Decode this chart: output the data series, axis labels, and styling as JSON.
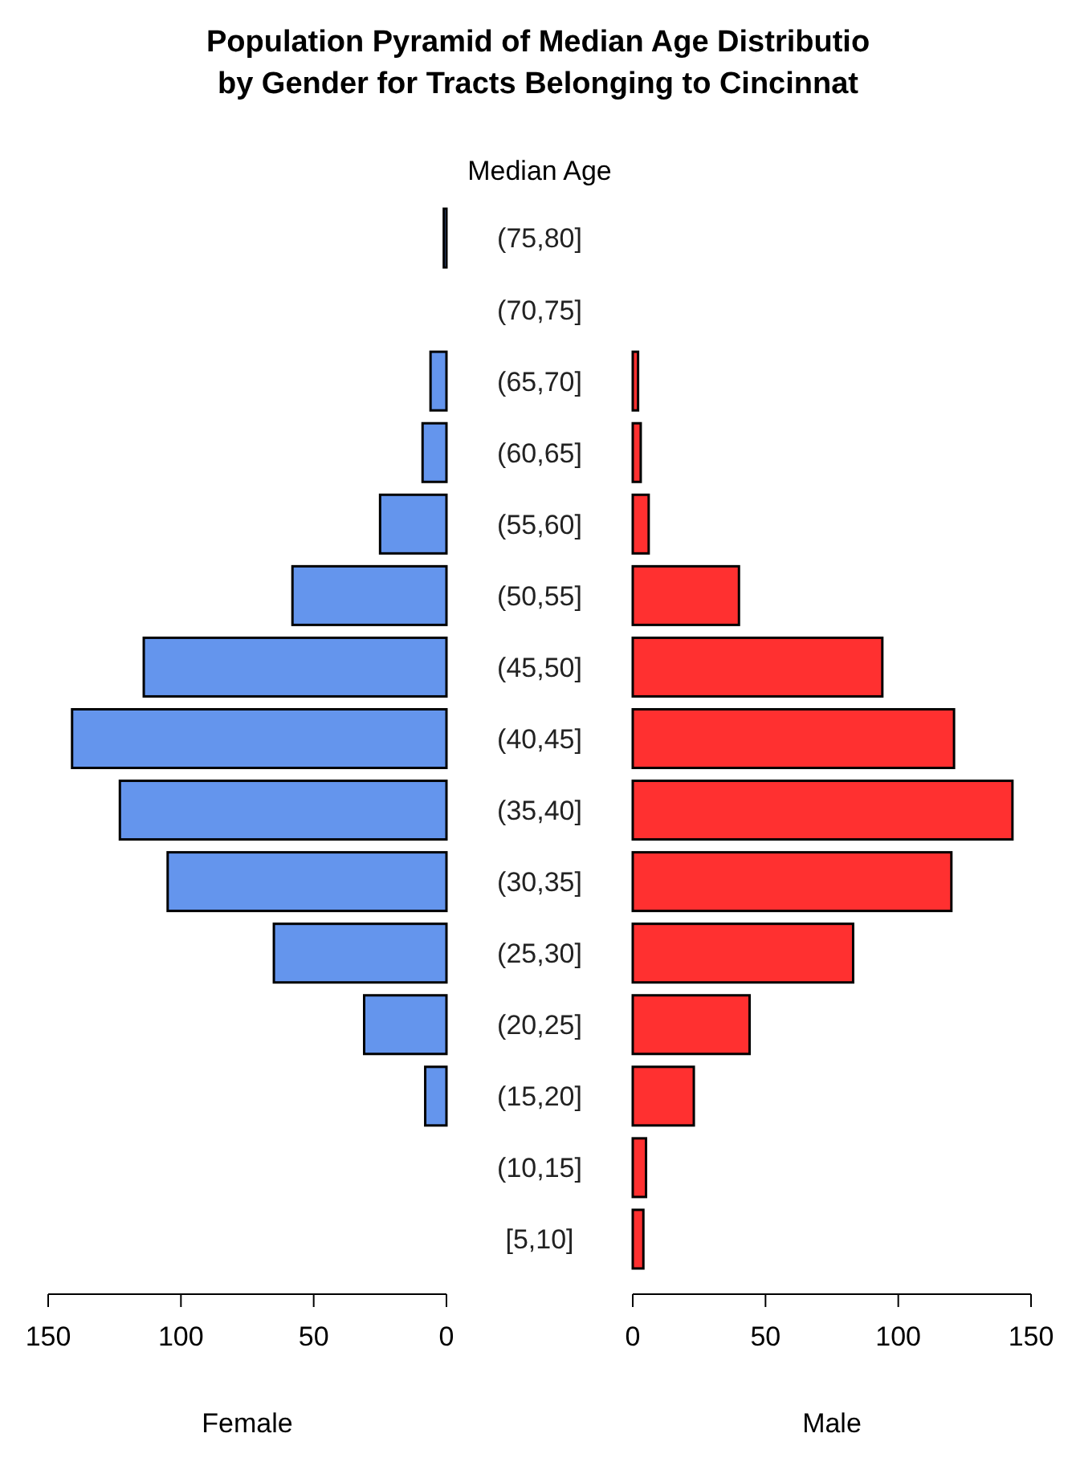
{
  "chart_data": [
    {
      "type": "bar",
      "orientation": "horizontal",
      "title": "Population Pyramid of Median Age Distributio\nby Gender for Tracts Belonging to Cincinnat",
      "ylabel": "Median Age",
      "xlabel": "Female",
      "categories": [
        "(75,80]",
        "(70,75]",
        "(65,70]",
        "(60,65]",
        "(55,60]",
        "(50,55]",
        "(45,50]",
        "(40,45]",
        "(35,40]",
        "(30,35]",
        "(25,30]",
        "(20,25]",
        "(15,20]",
        "(10,15]",
        "[5,10]"
      ],
      "values": [
        1,
        0,
        6,
        9,
        25,
        58,
        114,
        141,
        123,
        105,
        65,
        31,
        8,
        0,
        0
      ],
      "color": "#6495ed",
      "xlim": [
        150,
        0
      ],
      "xticks": [
        150,
        100,
        50,
        0
      ]
    },
    {
      "type": "bar",
      "orientation": "horizontal",
      "xlabel": "Male",
      "categories": [
        "(75,80]",
        "(70,75]",
        "(65,70]",
        "(60,65]",
        "(55,60]",
        "(50,55]",
        "(45,50]",
        "(40,45]",
        "(35,40]",
        "(30,35]",
        "(25,30]",
        "(20,25]",
        "(15,20]",
        "(10,15]",
        "[5,10]"
      ],
      "values": [
        0,
        0,
        2,
        3,
        6,
        40,
        94,
        121,
        143,
        120,
        83,
        44,
        23,
        5,
        4
      ],
      "color": "#ff3030",
      "xlim": [
        0,
        150
      ],
      "xticks": [
        0,
        50,
        100,
        150
      ],
      "tick_labels": "x"
    }
  ]
}
